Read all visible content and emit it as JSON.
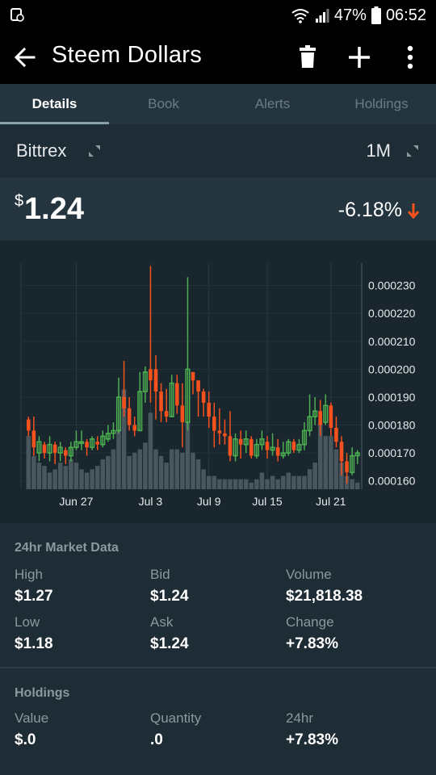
{
  "status": {
    "battery": "47%",
    "time": "06:52"
  },
  "header": {
    "title": "Steem Dollars"
  },
  "tabs": [
    "Details",
    "Book",
    "Alerts",
    "Holdings"
  ],
  "exchange": {
    "name": "Bittrex",
    "period": "1M"
  },
  "price": {
    "currency": "$",
    "value": "1.24",
    "change": "-6.18%"
  },
  "colors": {
    "up": "#4caf50",
    "down": "#f4511e",
    "volume": "#4a565d",
    "background": "#1e2c35"
  },
  "chart_data": {
    "type": "candlestick",
    "x_ticks": [
      "Jun 27",
      "Jul 3",
      "Jul 9",
      "Jul 15",
      "Jul 21"
    ],
    "y_ticks": [
      "0.000230",
      "0.000220",
      "0.000210",
      "0.000200",
      "0.000190",
      "0.000180",
      "0.000170",
      "0.000160"
    ],
    "ylim": [
      0.000157,
      0.000238
    ],
    "candles": [
      [
        0.000182,
        0.000178,
        0.000183,
        0.000176,
        0.00016
      ],
      [
        0.000178,
        0.000172,
        0.000183,
        0.000169,
        0.0001
      ],
      [
        0.00017,
        0.000174,
        0.000176,
        0.000167,
        8e-05
      ],
      [
        0.000173,
        0.00017,
        0.000174,
        0.000168,
        7e-05
      ],
      [
        0.00017,
        0.000173,
        0.000176,
        0.000167,
        5e-05
      ],
      [
        0.000173,
        0.00017,
        0.000174,
        0.000166,
        6e-05
      ],
      [
        0.00017,
        0.000172,
        0.000174,
        0.000167,
        8e-05
      ],
      [
        0.000171,
        0.000169,
        0.000172,
        0.000166,
        7e-05
      ],
      [
        0.000169,
        0.000172,
        0.000174,
        0.000167,
        9e-05
      ],
      [
        0.000172,
        0.000174,
        0.000178,
        0.000171,
        8e-05
      ],
      [
        0.000174,
        0.000174,
        0.000178,
        0.000171,
        6e-05
      ],
      [
        0.000174,
        0.000172,
        0.000175,
        0.000169,
        5e-05
      ],
      [
        0.000172,
        0.000175,
        0.000176,
        0.000171,
        6e-05
      ],
      [
        0.000174,
        0.000173,
        0.000176,
        0.000171,
        7e-05
      ],
      [
        0.000173,
        0.000176,
        0.000178,
        0.000172,
        9e-05
      ],
      [
        0.000175,
        0.000177,
        0.00018,
        0.000174,
        0.0001
      ],
      [
        0.000177,
        0.000178,
        0.000181,
        0.000175,
        0.00012
      ],
      [
        0.000178,
        0.00019,
        0.000197,
        0.000177,
        0.00018
      ],
      [
        0.00019,
        0.000186,
        0.000203,
        0.000183,
        0.0003
      ],
      [
        0.000186,
        0.00018,
        0.00019,
        0.000178,
        0.0001
      ],
      [
        0.00018,
        0.000178,
        0.000183,
        0.000176,
        0.00011
      ],
      [
        0.000178,
        0.000192,
        0.000199,
        0.000178,
        0.00012
      ],
      [
        0.000192,
        0.000199,
        0.000201,
        0.000188,
        0.00014
      ],
      [
        0.0002,
        0.000196,
        0.000237,
        0.000188,
        0.00023
      ],
      [
        0.0002,
        0.000192,
        0.000205,
        0.000182,
        0.00012
      ],
      [
        0.000192,
        0.000185,
        0.000195,
        0.000181,
        0.0001
      ],
      [
        0.000185,
        0.000183,
        0.000193,
        0.000181,
        8e-05
      ],
      [
        0.000183,
        0.000195,
        0.000198,
        0.000183,
        0.00012
      ],
      [
        0.000195,
        0.000187,
        0.000198,
        0.000184,
        0.00012
      ],
      [
        0.000187,
        0.000181,
        0.000195,
        0.000172,
        0.00011
      ],
      [
        0.000181,
        0.0002,
        0.000233,
        0.000178,
        0.0002
      ],
      [
        0.000199,
        0.000196,
        0.000199,
        0.000191,
        0.00011
      ],
      [
        0.000196,
        0.000192,
        0.000196,
        0.000183,
        9e-05
      ],
      [
        0.000192,
        0.000188,
        0.000193,
        0.000183,
        6e-05
      ],
      [
        0.000188,
        0.000183,
        0.000192,
        0.000179,
        4e-05
      ],
      [
        0.000183,
        0.000178,
        0.000188,
        0.000172,
        4e-05
      ],
      [
        0.000178,
        0.000177,
        0.000186,
        0.000173,
        3e-05
      ],
      [
        0.000177,
        0.000176,
        0.000182,
        0.000173,
        3e-05
      ],
      [
        0.000176,
        0.000169,
        0.000185,
        0.000167,
        3e-05
      ],
      [
        0.000169,
        0.000175,
        0.000177,
        0.000167,
        3e-05
      ],
      [
        0.000175,
        0.000173,
        0.000178,
        0.000168,
        3e-05
      ],
      [
        0.000173,
        0.000175,
        0.000178,
        0.00017,
        3e-05
      ],
      [
        0.000175,
        0.000169,
        0.000176,
        0.000168,
        2e-05
      ],
      [
        0.000169,
        0.000173,
        0.000175,
        0.000168,
        3e-05
      ],
      [
        0.000173,
        0.000175,
        0.000178,
        0.000171,
        5e-05
      ],
      [
        0.000174,
        0.000171,
        0.000176,
        0.000168,
        3e-05
      ],
      [
        0.000171,
        0.000172,
        0.000177,
        0.000169,
        4e-05
      ],
      [
        0.000172,
        0.000169,
        0.000175,
        0.000167,
        3e-05
      ],
      [
        0.000169,
        0.00017,
        0.000174,
        0.000168,
        4e-05
      ],
      [
        0.00017,
        0.000174,
        0.000175,
        0.000169,
        5e-05
      ],
      [
        0.000174,
        0.000171,
        0.000175,
        0.00017,
        4e-05
      ],
      [
        0.000171,
        0.000173,
        0.000175,
        0.00017,
        4e-05
      ],
      [
        0.000173,
        0.000178,
        0.000181,
        0.000171,
        4e-05
      ],
      [
        0.000178,
        0.000183,
        0.000191,
        0.000176,
        6e-05
      ],
      [
        0.000183,
        0.000185,
        0.00019,
        0.00018,
        8e-05
      ],
      [
        0.000185,
        0.00018,
        0.000189,
        0.000176,
        0.0002
      ],
      [
        0.000181,
        0.000187,
        0.000191,
        0.00018,
        0.00016
      ],
      [
        0.000187,
        0.000179,
        0.000188,
        0.000176,
        0.00016
      ],
      [
        0.000179,
        0.000174,
        0.000183,
        0.000172,
        0.00012
      ],
      [
        0.000174,
        0.000167,
        0.000176,
        0.000162,
        8e-05
      ],
      [
        0.000167,
        0.000163,
        0.00017,
        0.000159,
        4e-05
      ],
      [
        0.000163,
        0.000169,
        0.000172,
        0.000162,
        3e-05
      ],
      [
        0.000169,
        0.00017,
        0.000171,
        0.000166,
        2e-05
      ]
    ]
  },
  "market": {
    "title": "24hr Market Data",
    "cells": [
      {
        "label": "High",
        "value": "$1.27"
      },
      {
        "label": "Bid",
        "value": "$1.24"
      },
      {
        "label": "Volume",
        "value": "$21,818.38"
      },
      {
        "label": "Low",
        "value": "$1.18"
      },
      {
        "label": "Ask",
        "value": "$1.24"
      },
      {
        "label": "Change",
        "value": "+7.83%"
      }
    ]
  },
  "holdings": {
    "title": "Holdings",
    "cells": [
      {
        "label": "Value",
        "value": "$.0"
      },
      {
        "label": "Quantity",
        "value": ".0"
      },
      {
        "label": "24hr",
        "value": "+7.83%"
      }
    ]
  }
}
